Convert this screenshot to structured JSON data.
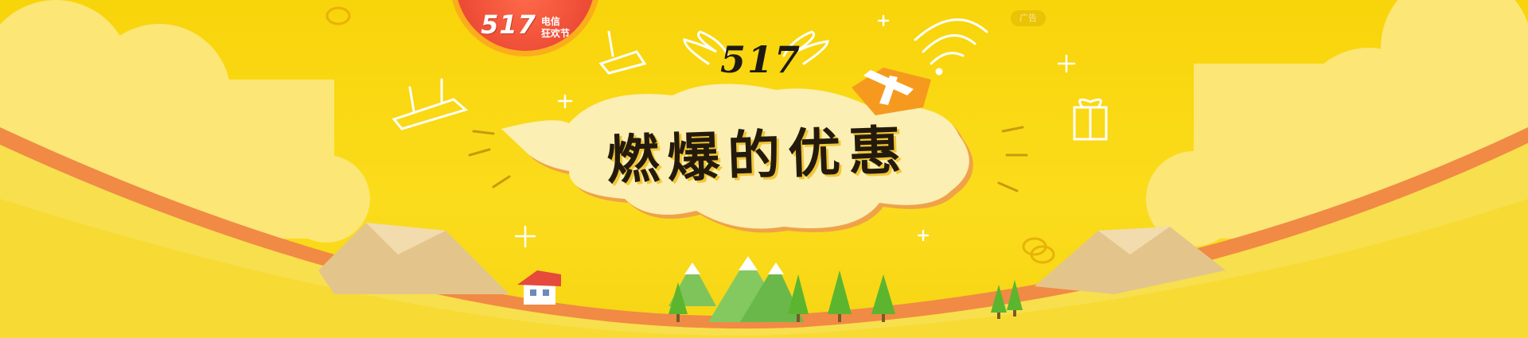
{
  "badge": {
    "number": "517",
    "line1": "电信",
    "line2": "狂欢节"
  },
  "ad_tag": "广告",
  "hero": {
    "number": "517",
    "headline": "燃爆的优惠"
  },
  "colors": {
    "background": "#f8d40a",
    "badge": "#ec4b35",
    "cloud": "#fbefb3",
    "orange_stripe": "#f18a45",
    "gift": "#f59a1f",
    "tree": "#5cb52f"
  },
  "icons": [
    "router-icon",
    "wifi-icon",
    "gift-icon",
    "coin-icon",
    "sparkle-icon",
    "house-icon",
    "tree-icon",
    "mountain-icon"
  ]
}
